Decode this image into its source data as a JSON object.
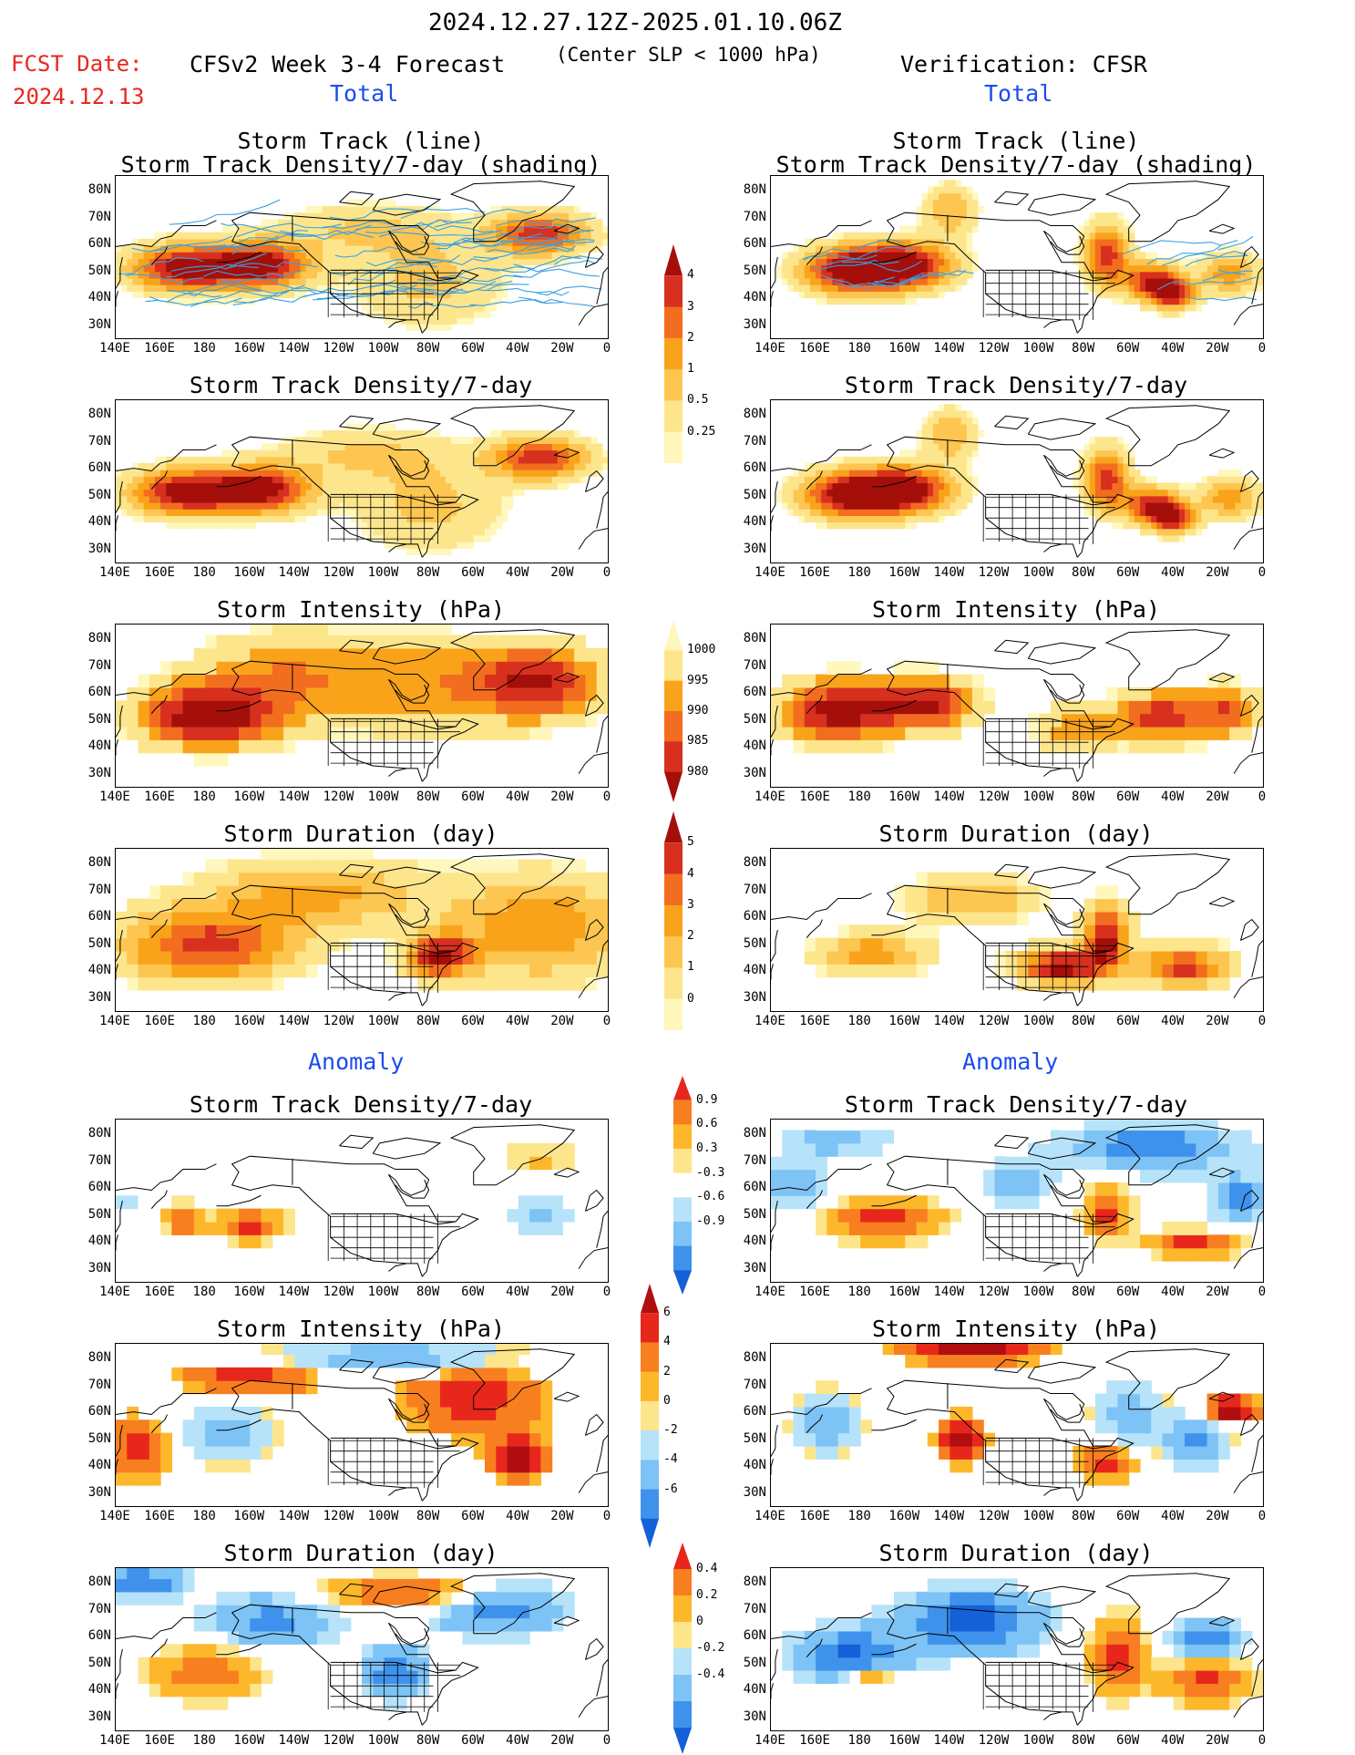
{
  "header": {
    "period": "2024.12.27.12Z-2025.01.10.06Z",
    "fcst_label": "FCST Date:",
    "fcst_date": "2024.12.13",
    "model_title": "CFSv2 Week 3-4 Forecast",
    "criterion": "(Center SLP < 1000 hPa)",
    "verification": "Verification: CFSR",
    "section_total_left": "Total",
    "section_total_right": "Total",
    "section_anomaly_left": "Anomaly",
    "section_anomaly_right": "Anomaly"
  },
  "axes": {
    "lat_labels": [
      "80N",
      "70N",
      "60N",
      "50N",
      "40N",
      "30N"
    ],
    "lon_labels": [
      "140E",
      "160E",
      "180",
      "160W",
      "140W",
      "120W",
      "100W",
      "80W",
      "60W",
      "40W",
      "20W",
      "0"
    ]
  },
  "panels": [
    {
      "id": "fcst-track",
      "title": "Storm Track (line)",
      "title2": "Storm Track Density/7-day (shading)",
      "field": "density",
      "source": "forecast",
      "tracks": true
    },
    {
      "id": "cfsr-track",
      "title": "Storm Track (line)",
      "title2": "Storm Track Density/7-day (shading)",
      "field": "density",
      "source": "verification",
      "tracks": true
    },
    {
      "id": "fcst-density",
      "title": "Storm Track Density/7-day",
      "field": "density",
      "source": "forecast"
    },
    {
      "id": "cfsr-density",
      "title": "Storm Track Density/7-day",
      "field": "density",
      "source": "verification"
    },
    {
      "id": "fcst-intensity",
      "title": "Storm Intensity (hPa)",
      "field": "intensity",
      "source": "forecast"
    },
    {
      "id": "cfsr-intensity",
      "title": "Storm Intensity (hPa)",
      "field": "intensity",
      "source": "verification"
    },
    {
      "id": "fcst-duration",
      "title": "Storm Duration (day)",
      "field": "duration",
      "source": "forecast"
    },
    {
      "id": "cfsr-duration",
      "title": "Storm Duration (day)",
      "field": "duration",
      "source": "verification"
    },
    {
      "id": "fcst-density-anom",
      "title": "Storm Track Density/7-day",
      "field": "density_anom",
      "source": "forecast"
    },
    {
      "id": "cfsr-density-anom",
      "title": "Storm Track Density/7-day",
      "field": "density_anom",
      "source": "verification"
    },
    {
      "id": "fcst-intensity-anom",
      "title": "Storm Intensity (hPa)",
      "field": "intensity_anom",
      "source": "forecast"
    },
    {
      "id": "cfsr-intensity-anom",
      "title": "Storm Intensity (hPa)",
      "field": "intensity_anom",
      "source": "verification"
    },
    {
      "id": "fcst-duration-anom",
      "title": "Storm Duration (day)",
      "field": "duration_anom",
      "source": "forecast"
    },
    {
      "id": "cfsr-duration-anom",
      "title": "Storm Duration (day)",
      "field": "duration_anom",
      "source": "verification"
    }
  ],
  "colorbars": {
    "density": {
      "labels": [
        "4",
        "3",
        "2",
        "1",
        "0.5",
        "0.25"
      ],
      "colors": [
        "#a50f0a",
        "#d7301f",
        "#f26d1f",
        "#f9a31b",
        "#fdc651",
        "#fde58c",
        "#fff7bc"
      ]
    },
    "intensity": {
      "labels": [
        "1000",
        "995",
        "990",
        "985",
        "980"
      ],
      "colors": [
        "#fff7bc",
        "#fde58c",
        "#f9a31b",
        "#f26d1f",
        "#d7301f",
        "#a50f0a"
      ]
    },
    "duration": {
      "labels": [
        "5",
        "4",
        "3",
        "2",
        "1",
        "0"
      ],
      "colors": [
        "#a50f0a",
        "#d7301f",
        "#f26d1f",
        "#f9a31b",
        "#fdc651",
        "#fde58c",
        "#fff7bc"
      ]
    },
    "density_anom": {
      "labels": [
        "0.9",
        "0.6",
        "0.3",
        "-0.3",
        "-0.6",
        "-0.9"
      ],
      "colors": [
        "#e8271c",
        "#f77f1f",
        "#fdb72b",
        "#fde58c",
        "#ffffff",
        "#b6e3fa",
        "#7ec3f5",
        "#3e92ec",
        "#1460d8"
      ]
    },
    "intensity_anom": {
      "labels": [
        "6",
        "4",
        "2",
        "0",
        "-2",
        "-4",
        "-6"
      ],
      "colors": [
        "#b10e12",
        "#e8271c",
        "#f77f1f",
        "#fdb72b",
        "#fde58c",
        "#b6e3fa",
        "#7ec3f5",
        "#3e92ec",
        "#1460d8"
      ]
    },
    "duration_anom": {
      "labels": [
        "0.4",
        "0.2",
        "0",
        "-0.2",
        "-0.4"
      ],
      "colors": [
        "#e8271c",
        "#f77f1f",
        "#fdb72b",
        "#fde58c",
        "#b6e3fa",
        "#7ec3f5",
        "#3e92ec",
        "#1460d8"
      ]
    }
  },
  "colors": {
    "title_red": "#e8271c",
    "section_blue": "#1a4cf0",
    "track_line": "#3ca0e0"
  }
}
